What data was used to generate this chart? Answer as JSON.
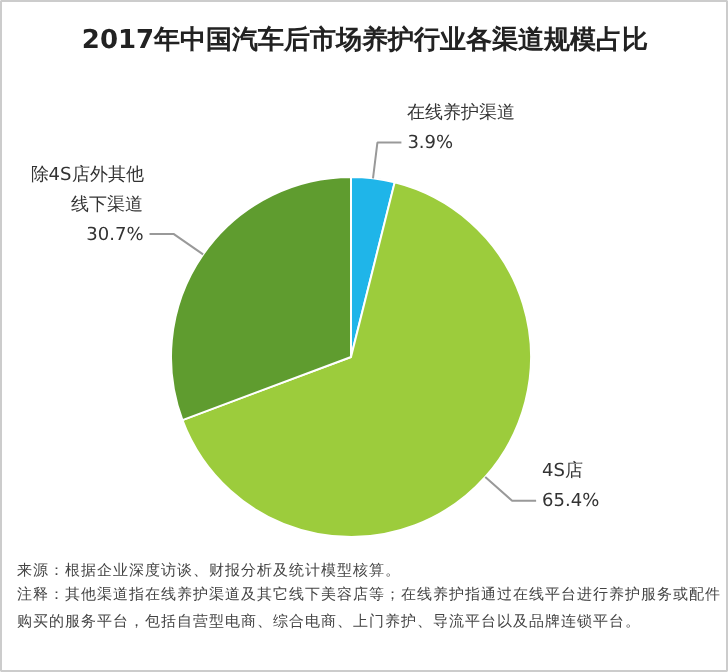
{
  "chart_data": {
    "type": "pie",
    "title": "2017年中国汽车后市场养护行业各渠道规模占比",
    "categories": [
      "在线养护渠道",
      "4S店",
      "除4S店外其他线下渠道"
    ],
    "values": [
      3.9,
      65.4,
      30.7
    ],
    "colors": [
      "#1fb5e9",
      "#9ccc3c",
      "#5f9c2f"
    ],
    "value_labels": [
      "3.9%",
      "65.4%",
      "30.7%"
    ],
    "annotations": [
      "来源：根据企业深度访谈、财报分析及统计模型核算。",
      "注释：其他渠道指在线养护渠道及其它线下美容店等；在线养护指通过在线平台进行养护服务或配件购买的服务平台，包括自营型电商、综合电商、上门养护、导流平台以及品牌连锁平台。"
    ]
  }
}
